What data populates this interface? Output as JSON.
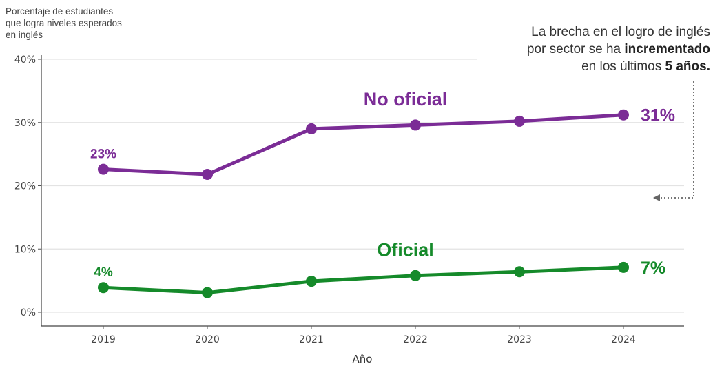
{
  "chart_data": {
    "type": "line",
    "y_axis_title_lines": [
      "Porcentaje de estudiantes",
      "que logra niveles esperados",
      "en inglés"
    ],
    "xlabel": "Año",
    "x": [
      "2019",
      "2020",
      "2021",
      "2022",
      "2023",
      "2024"
    ],
    "ylim": [
      0,
      40
    ],
    "yticks": [
      "0%",
      "10%",
      "20%",
      "30%",
      "40%"
    ],
    "grid": true,
    "series": [
      {
        "name": "No oficial",
        "values": [
          22.6,
          21.8,
          29.0,
          29.6,
          30.2,
          31.2
        ],
        "color": "#7b2c96",
        "start_label": "23%",
        "end_label": "31%"
      },
      {
        "name": "Oficial",
        "values": [
          3.9,
          3.1,
          4.9,
          5.8,
          6.4,
          7.1
        ],
        "color": "#158a2a",
        "start_label": "4%",
        "end_label": "7%"
      }
    ],
    "annotation": {
      "line1": "La brecha en el logro de inglés",
      "line2_pre": "por sector se ha ",
      "line2_bold": "incrementado",
      "line3_pre": "en los últimos ",
      "line3_bold": "5 años."
    }
  }
}
